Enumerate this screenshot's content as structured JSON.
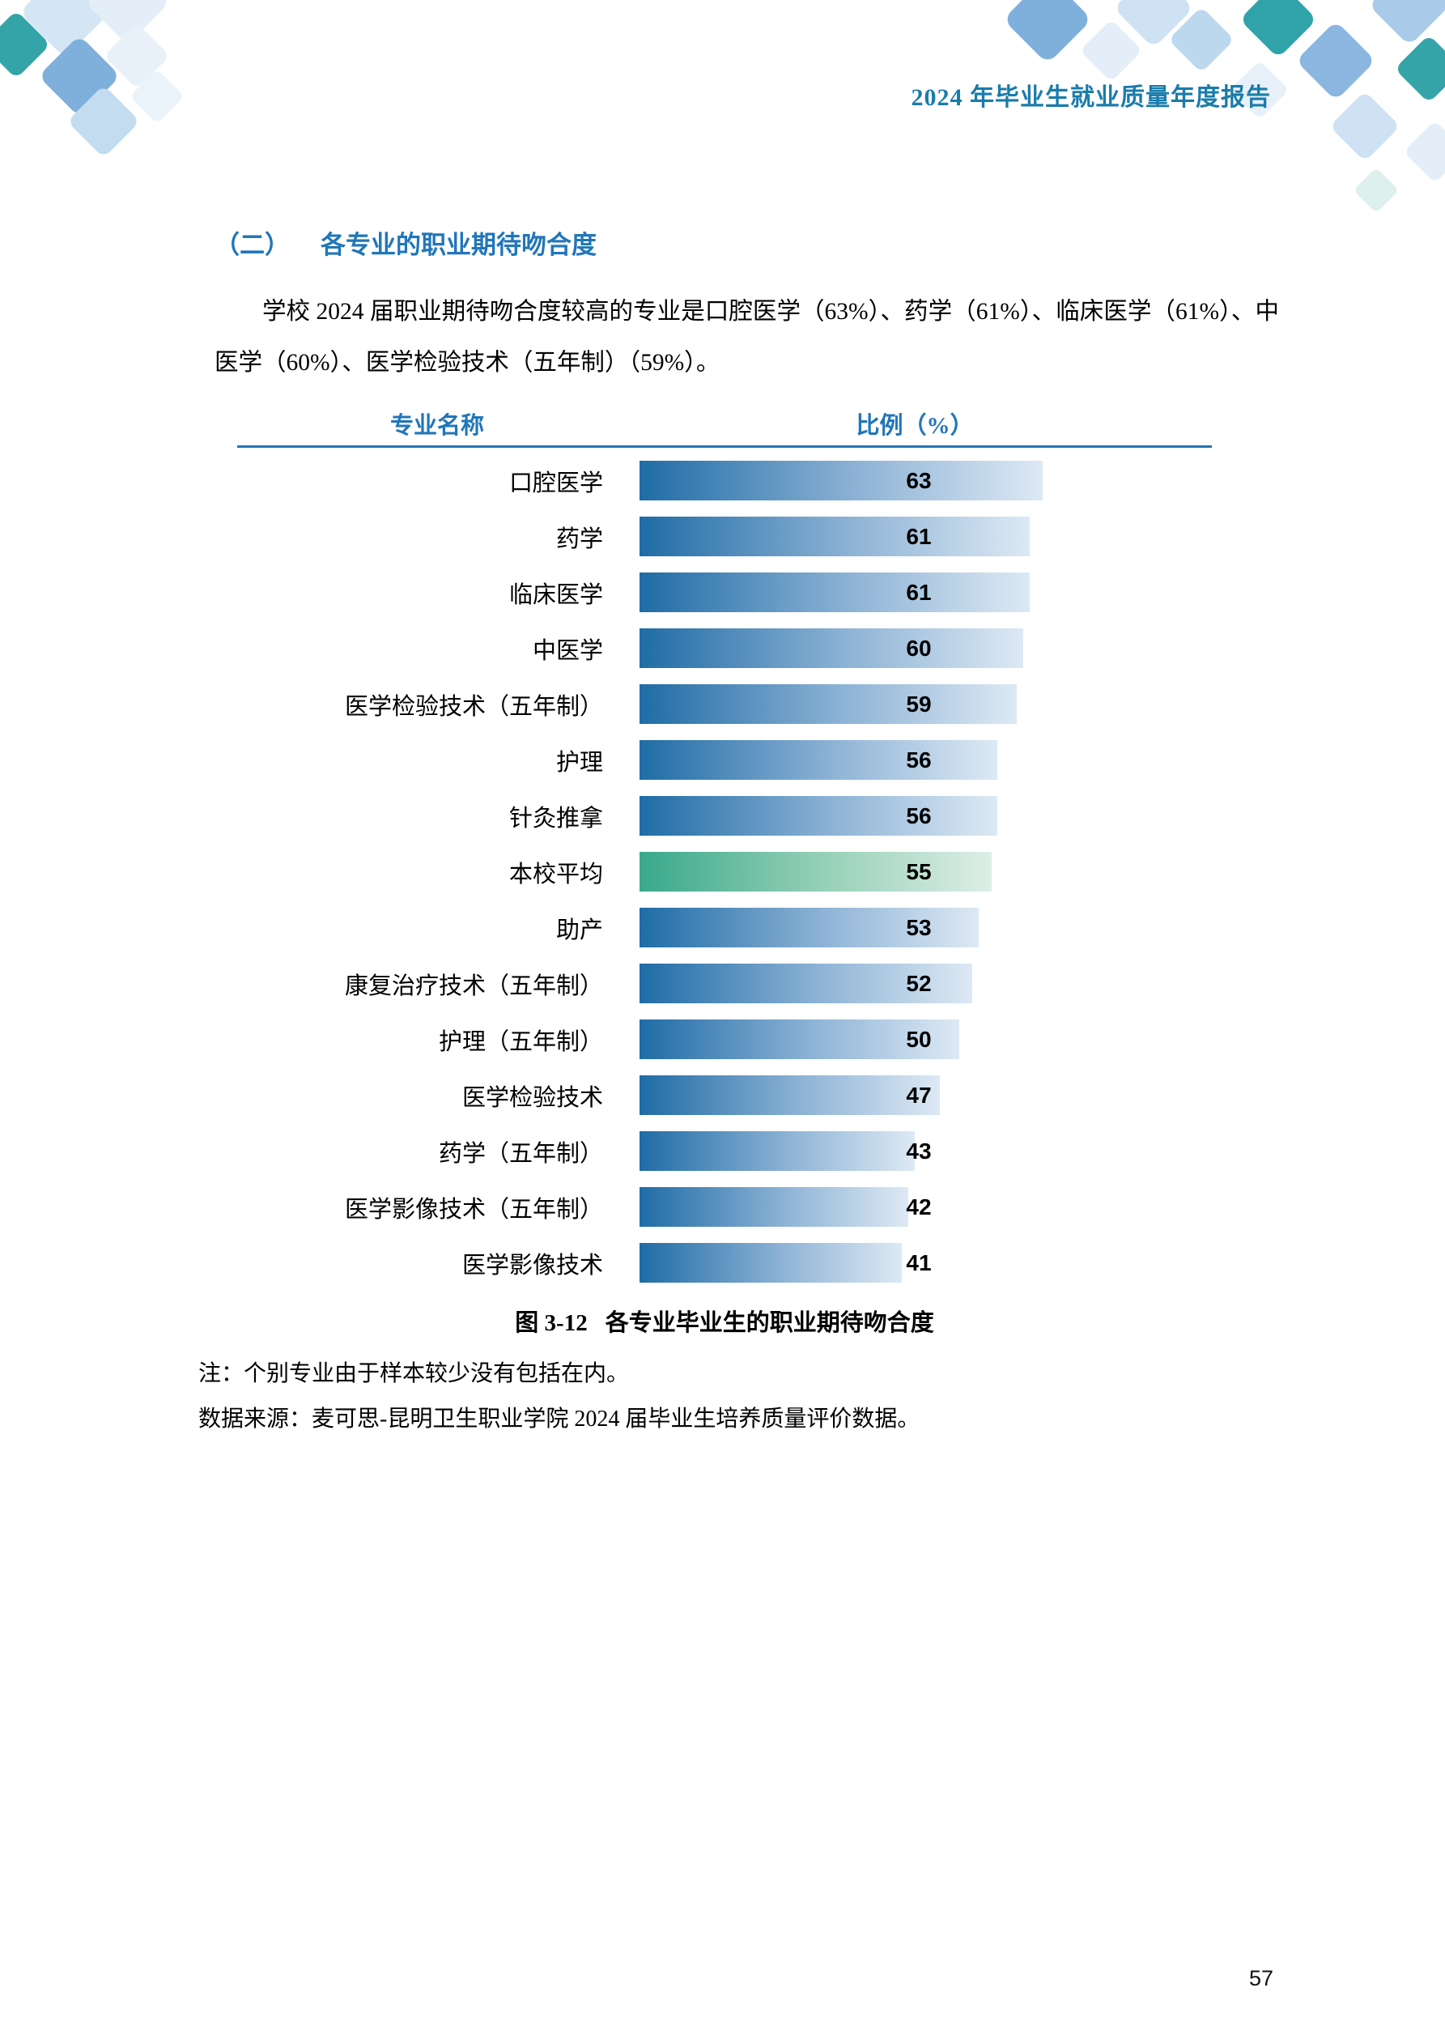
{
  "page": {
    "header": "2024 年毕业生就业质量年度报告",
    "page_number": "57"
  },
  "section": {
    "number": "（二）",
    "title": "各专业的职业期待吻合度"
  },
  "paragraph": {
    "text": "学校 2024 届职业期待吻合度较高的专业是口腔医学（63%）、药学（61%）、临床医学（61%）、中医学（60%）、医学检验技术（五年制）（59%）。"
  },
  "caption": {
    "number": "图 3-12",
    "title": "各专业毕业生的职业期待吻合度"
  },
  "notes": {
    "note": "注：个别专业由于样本较少没有包括在内。",
    "source": "数据来源：麦可思-昆明卫生职业学院 2024 届毕业生培养质量评价数据。"
  },
  "colors": {
    "accent_blue": "#2176b9",
    "header_teal": "#1a7cab",
    "rule_blue": "#2474ae"
  },
  "chart_data": {
    "type": "bar",
    "orientation": "horizontal",
    "title": "各专业毕业生的职业期待吻合度",
    "xlabel": "比例（%）",
    "ylabel": "专业名称",
    "unit": "%",
    "col_header_left": "专业名称",
    "col_header_right": "比例（%）",
    "categories": [
      "口腔医学",
      "药学",
      "临床医学",
      "中医学",
      "医学检验技术（五年制）",
      "护理",
      "针灸推拿",
      "本校平均",
      "助产",
      "康复治疗技术（五年制）",
      "护理（五年制）",
      "医学检验技术",
      "药学（五年制）",
      "医学影像技术（五年制）",
      "医学影像技术"
    ],
    "values": [
      63,
      61,
      61,
      60,
      59,
      56,
      56,
      55,
      53,
      52,
      50,
      47,
      43,
      42,
      41
    ],
    "highlight_category": "本校平均",
    "bar_gradient": [
      "#1f6ca6",
      "#8fb4d6",
      "#dde9f4"
    ],
    "highlight_gradient": [
      "#3aa98a",
      "#9ad2ba",
      "#ddeee6"
    ],
    "value_label_position": "inside",
    "grid": false,
    "legend": false
  }
}
